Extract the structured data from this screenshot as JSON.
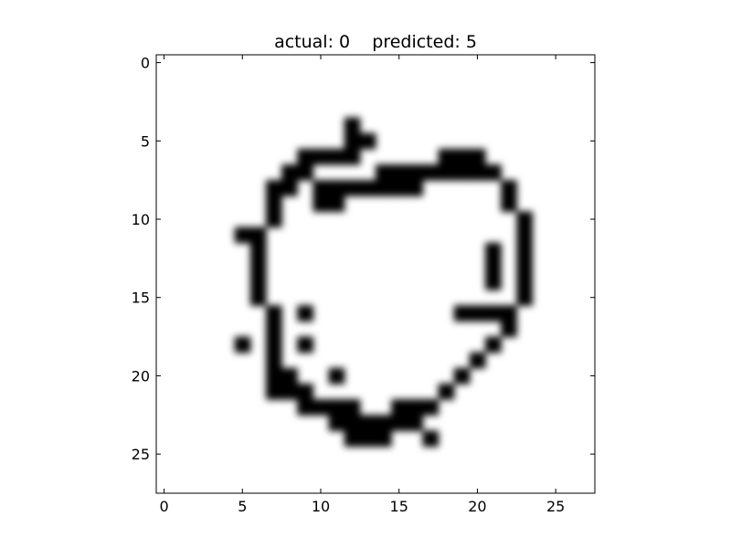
{
  "chart_data": {
    "type": "heatmap",
    "title": "actual: 0    predicted: 5",
    "title_parts": {
      "actual": "actual: 0",
      "predicted": "predicted: 5"
    },
    "colormap": "gray_r",
    "interpolation": "bicubic",
    "grid_size": [
      28,
      28
    ],
    "xlim": [
      -0.5,
      27.5
    ],
    "ylim": [
      27.5,
      -0.5
    ],
    "xticks": [
      0,
      5,
      10,
      15,
      20,
      25
    ],
    "yticks": [
      0,
      5,
      10,
      15,
      20,
      25
    ],
    "xticklabels": [
      "0",
      "5",
      "10",
      "15",
      "20",
      "25"
    ],
    "yticklabels": [
      "0",
      "5",
      "10",
      "15",
      "20",
      "25"
    ],
    "grid": false,
    "ink_cells": [
      [
        4,
        12
      ],
      [
        5,
        12
      ],
      [
        5,
        13
      ],
      [
        6,
        9
      ],
      [
        6,
        10
      ],
      [
        6,
        11
      ],
      [
        6,
        12
      ],
      [
        6,
        18
      ],
      [
        6,
        19
      ],
      [
        6,
        20
      ],
      [
        7,
        8
      ],
      [
        7,
        9
      ],
      [
        7,
        14
      ],
      [
        7,
        15
      ],
      [
        7,
        16
      ],
      [
        7,
        17
      ],
      [
        7,
        18
      ],
      [
        7,
        19
      ],
      [
        7,
        20
      ],
      [
        7,
        21
      ],
      [
        8,
        7
      ],
      [
        8,
        8
      ],
      [
        8,
        10
      ],
      [
        8,
        11
      ],
      [
        8,
        12
      ],
      [
        8,
        13
      ],
      [
        8,
        14
      ],
      [
        8,
        15
      ],
      [
        8,
        16
      ],
      [
        8,
        22
      ],
      [
        9,
        7
      ],
      [
        9,
        10
      ],
      [
        9,
        11
      ],
      [
        9,
        22
      ],
      [
        10,
        7
      ],
      [
        10,
        23
      ],
      [
        11,
        5
      ],
      [
        11,
        6
      ],
      [
        11,
        23
      ],
      [
        12,
        6
      ],
      [
        12,
        21
      ],
      [
        12,
        23
      ],
      [
        13,
        6
      ],
      [
        13,
        21
      ],
      [
        13,
        23
      ],
      [
        14,
        6
      ],
      [
        14,
        21
      ],
      [
        14,
        23
      ],
      [
        15,
        6
      ],
      [
        15,
        23
      ],
      [
        16,
        7
      ],
      [
        16,
        9
      ],
      [
        16,
        19
      ],
      [
        16,
        20
      ],
      [
        16,
        21
      ],
      [
        16,
        22
      ],
      [
        17,
        7
      ],
      [
        17,
        22
      ],
      [
        18,
        5
      ],
      [
        18,
        7
      ],
      [
        18,
        9
      ],
      [
        18,
        21
      ],
      [
        19,
        7
      ],
      [
        19,
        20
      ],
      [
        20,
        7
      ],
      [
        20,
        8
      ],
      [
        20,
        11
      ],
      [
        20,
        19
      ],
      [
        21,
        7
      ],
      [
        21,
        8
      ],
      [
        21,
        9
      ],
      [
        21,
        18
      ],
      [
        22,
        9
      ],
      [
        22,
        10
      ],
      [
        22,
        11
      ],
      [
        22,
        12
      ],
      [
        22,
        15
      ],
      [
        22,
        16
      ],
      [
        22,
        17
      ],
      [
        23,
        11
      ],
      [
        23,
        12
      ],
      [
        23,
        13
      ],
      [
        23,
        14
      ],
      [
        23,
        15
      ],
      [
        23,
        16
      ],
      [
        24,
        12
      ],
      [
        24,
        13
      ],
      [
        24,
        14
      ],
      [
        24,
        17
      ]
    ]
  }
}
